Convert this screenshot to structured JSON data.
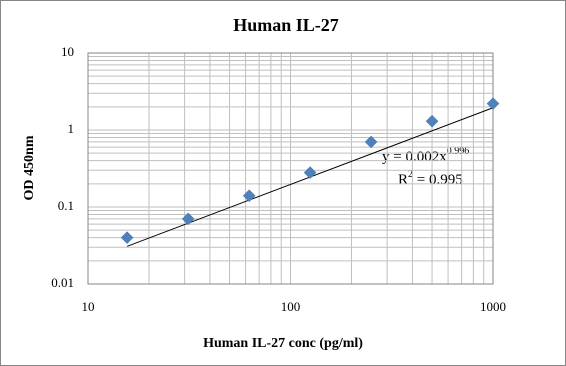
{
  "chart_data": {
    "type": "scatter",
    "title": "Human IL-27",
    "x_label": "Human IL-27 conc (pg/ml)",
    "y_label": "OD 450nm",
    "x": [
      15.6,
      31.25,
      62.5,
      125,
      250,
      500,
      1000
    ],
    "series": [
      {
        "color": "#4f81bd",
        "values": [
          0.04,
          0.07,
          0.14,
          0.28,
          0.7,
          1.3,
          2.2
        ]
      }
    ],
    "xlim": [
      10,
      1000
    ],
    "ylim": [
      0.01,
      10
    ],
    "xticks": [
      10,
      100,
      1000
    ],
    "yticks": [
      0.01,
      0.1,
      1,
      10
    ],
    "xscale": "log",
    "yscale": "log",
    "grid": true,
    "trendline": {
      "type": "power",
      "coefficient": 0.002,
      "exponent": 0.996,
      "color": "#000000"
    },
    "annotation": {
      "equation": "y = 0.002x",
      "equation_exponent": "0.996",
      "r2_base": "R",
      "r2_power": "2",
      "r2_rest": " = 0.995"
    }
  }
}
